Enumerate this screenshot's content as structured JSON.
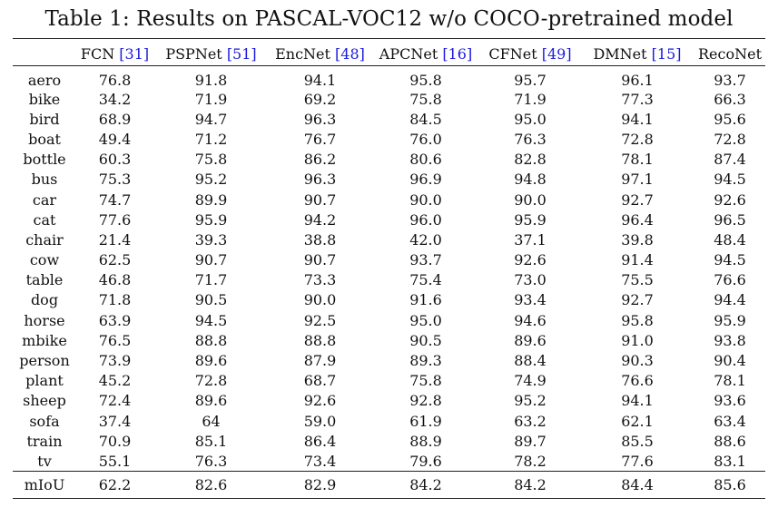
{
  "caption": "Table 1: Results on PASCAL-VOC12 w/o COCO-pretrained model",
  "columns": [
    {
      "name": "FCN",
      "ref": "[31]"
    },
    {
      "name": "PSPNet",
      "ref": "[51]"
    },
    {
      "name": "EncNet",
      "ref": "[48]"
    },
    {
      "name": "APCNet",
      "ref": "[16]"
    },
    {
      "name": "CFNet",
      "ref": "[49]"
    },
    {
      "name": "DMNet",
      "ref": "[15]"
    },
    {
      "name": "RecoNet",
      "ref": ""
    }
  ],
  "rows": [
    {
      "label": "aero",
      "values": [
        "76.8",
        "91.8",
        "94.1",
        "95.8",
        "95.7",
        "96.1",
        "93.7"
      ],
      "best": 5
    },
    {
      "label": "bike",
      "values": [
        "34.2",
        "71.9",
        "69.2",
        "75.8",
        "71.9",
        "77.3",
        "66.3"
      ],
      "best": 5
    },
    {
      "label": "bird",
      "values": [
        "68.9",
        "94.7",
        "96.3",
        "84.5",
        "95.0",
        "94.1",
        "95.6"
      ],
      "best": 2
    },
    {
      "label": "boat",
      "values": [
        "49.4",
        "71.2",
        "76.7",
        "76.0",
        "76.3",
        "72.8",
        "72.8"
      ],
      "best": 2
    },
    {
      "label": "bottle",
      "values": [
        "60.3",
        "75.8",
        "86.2",
        "80.6",
        "82.8",
        "78.1",
        "87.4"
      ],
      "best": 6
    },
    {
      "label": "bus",
      "values": [
        "75.3",
        "95.2",
        "96.3",
        "96.9",
        "94.8",
        "97.1",
        "94.5"
      ],
      "best": 5
    },
    {
      "label": "car",
      "values": [
        "74.7",
        "89.9",
        "90.7",
        "90.0",
        "90.0",
        "92.7",
        "92.6"
      ],
      "best": 5
    },
    {
      "label": "cat",
      "values": [
        "77.6",
        "95.9",
        "94.2",
        "96.0",
        "95.9",
        "96.4",
        "96.5"
      ],
      "best": 6
    },
    {
      "label": "chair",
      "values": [
        "21.4",
        "39.3",
        "38.8",
        "42.0",
        "37.1",
        "39.8",
        "48.4"
      ],
      "best": 6
    },
    {
      "label": "cow",
      "values": [
        "62.5",
        "90.7",
        "90.7",
        "93.7",
        "92.6",
        "91.4",
        "94.5"
      ],
      "best": 6
    },
    {
      "label": "table",
      "values": [
        "46.8",
        "71.7",
        "73.3",
        "75.4",
        "73.0",
        "75.5",
        "76.6"
      ],
      "best": 6
    },
    {
      "label": "dog",
      "values": [
        "71.8",
        "90.5",
        "90.0",
        "91.6",
        "93.4",
        "92.7",
        "94.4"
      ],
      "best": 6
    },
    {
      "label": "horse",
      "values": [
        "63.9",
        "94.5",
        "92.5",
        "95.0",
        "94.6",
        "95.8",
        "95.9"
      ],
      "best": 6
    },
    {
      "label": "mbike",
      "values": [
        "76.5",
        "88.8",
        "88.8",
        "90.5",
        "89.6",
        "91.0",
        "93.8"
      ],
      "best": 6
    },
    {
      "label": "person",
      "values": [
        "73.9",
        "89.6",
        "87.9",
        "89.3",
        "88.4",
        "90.3",
        "90.4"
      ],
      "best": 6
    },
    {
      "label": "plant",
      "values": [
        "45.2",
        "72.8",
        "68.7",
        "75.8",
        "74.9",
        "76.6",
        "78.1"
      ],
      "best": 6
    },
    {
      "label": "sheep",
      "values": [
        "72.4",
        "89.6",
        "92.6",
        "92.8",
        "95.2",
        "94.1",
        "93.6"
      ],
      "best": 4
    },
    {
      "label": "sofa",
      "values": [
        "37.4",
        "64",
        "59.0",
        "61.9",
        "63.2",
        "62.1",
        "63.4"
      ],
      "best": 1
    },
    {
      "label": "train",
      "values": [
        "70.9",
        "85.1",
        "86.4",
        "88.9",
        "89.7",
        "85.5",
        "88.6"
      ],
      "best": 4
    },
    {
      "label": "tv",
      "values": [
        "55.1",
        "76.3",
        "73.4",
        "79.6",
        "78.2",
        "77.6",
        "83.1"
      ],
      "best": 6
    }
  ],
  "summary": {
    "label": "mIoU",
    "values": [
      "62.2",
      "82.6",
      "82.9",
      "84.2",
      "84.2",
      "84.4",
      "85.6"
    ],
    "best": 6
  }
}
